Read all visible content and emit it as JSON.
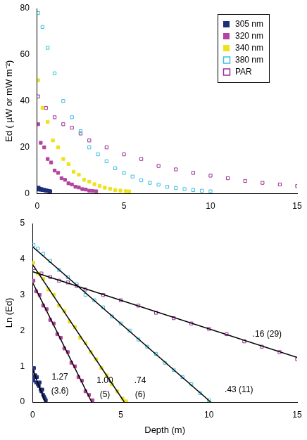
{
  "chart_data": [
    {
      "type": "scatter",
      "y_label": "Ed ( µW or mW m⁻²)",
      "xlim": [
        0,
        15
      ],
      "xticks": [
        0,
        5,
        10,
        15
      ],
      "ylim": [
        0,
        80
      ],
      "yticks": [
        0,
        20,
        40,
        60,
        80
      ],
      "grid": false,
      "legend": "upper right",
      "series": [
        {
          "name": "305 nm",
          "color": "#1f2e78",
          "marker": "square",
          "x": [
            0.02,
            0.05,
            0.08,
            0.1,
            0.15,
            0.2,
            0.25,
            0.3,
            0.35,
            0.4,
            0.45,
            0.5,
            0.55,
            0.6,
            0.65,
            0.7,
            0.75
          ],
          "values": [
            2.3,
            1.8,
            2.6,
            2.0,
            2.1,
            1.7,
            2.0,
            1.6,
            1.6,
            1.7,
            1.4,
            1.3,
            1.4,
            1.2,
            1.2,
            1.1,
            1.05
          ]
        },
        {
          "name": "320 nm",
          "color": "#b3449f",
          "marker": "square",
          "x": [
            0.05,
            0.2,
            0.4,
            0.6,
            0.8,
            1.0,
            1.2,
            1.4,
            1.6,
            1.8,
            2.0,
            2.2,
            2.4,
            2.6,
            2.8,
            3.0,
            3.2,
            3.4
          ],
          "values": [
            30,
            22,
            20,
            15,
            13.5,
            10,
            9,
            6.7,
            6,
            4.5,
            4,
            3,
            2.7,
            2,
            1.8,
            1.3,
            1.2,
            1.05
          ]
        },
        {
          "name": "340 nm",
          "color": "#eee21c",
          "marker": "square",
          "x": [
            0.05,
            0.3,
            0.6,
            0.9,
            1.2,
            1.5,
            1.8,
            2.1,
            2.4,
            2.7,
            3.0,
            3.3,
            3.6,
            3.9,
            4.2,
            4.5,
            4.8,
            5.1,
            5.3
          ],
          "values": [
            49,
            37,
            31,
            23,
            20,
            15,
            12.8,
            9.5,
            8.2,
            6,
            5.2,
            4.1,
            3.3,
            2.6,
            2.1,
            1.6,
            1.35,
            1.1,
            1.0
          ]
        },
        {
          "name": "380 nm",
          "color": "#3bbfe0",
          "marker": "open_square",
          "x": [
            0.05,
            0.3,
            0.6,
            1,
            1.5,
            2,
            2.5,
            3,
            3.5,
            4,
            4.5,
            5,
            5.5,
            6,
            6.5,
            7,
            7.5,
            8,
            8.5,
            9,
            9.5,
            10
          ],
          "values": [
            78,
            72,
            63,
            52,
            40,
            33,
            27,
            20,
            17,
            14,
            11,
            9,
            7.4,
            5.8,
            4.7,
            3.9,
            3,
            2.5,
            2,
            1.6,
            1.3,
            1.05
          ]
        },
        {
          "name": "PAR",
          "color": "#9a2f97",
          "marker": "open_square",
          "x": [
            0.05,
            0.5,
            1,
            1.5,
            2,
            2.5,
            3,
            4,
            5,
            6,
            7,
            8,
            9,
            10,
            11,
            12,
            13,
            14,
            15
          ],
          "values": [
            42,
            37,
            33,
            30,
            28.5,
            26,
            23,
            20,
            17,
            15,
            12,
            10.5,
            9,
            7.8,
            6.7,
            5.5,
            4.7,
            4,
            3.3
          ]
        }
      ]
    },
    {
      "type": "scatter",
      "x_label": "Depth (m)",
      "y_label": "Ln (Ed)",
      "xlim": [
        0,
        15
      ],
      "xticks": [
        0,
        5,
        10,
        15
      ],
      "ylim": [
        0,
        5
      ],
      "yticks": [
        0,
        1,
        2,
        3,
        4,
        5
      ],
      "grid": false,
      "series": [
        {
          "name": "305 nm",
          "color": "#1f2e78",
          "marker": "square",
          "x": [
            0.02,
            0.05,
            0.08,
            0.1,
            0.15,
            0.2,
            0.25,
            0.3,
            0.35,
            0.4,
            0.45,
            0.5,
            0.55,
            0.6,
            0.65,
            0.7,
            0.75
          ],
          "values": [
            0.85,
            0.6,
            0.95,
            0.7,
            0.75,
            0.55,
            0.7,
            0.5,
            0.45,
            0.55,
            0.35,
            0.3,
            0.35,
            0.2,
            0.15,
            0.1,
            0.05
          ],
          "fit": {
            "x": [
              0,
              0.72
            ],
            "values": [
              0.92,
              0
            ],
            "color": "#000000",
            "line_style": "solid"
          }
        },
        {
          "name": "320 nm",
          "color": "#b3449f",
          "marker": "square",
          "x": [
            0.05,
            0.2,
            0.4,
            0.6,
            0.8,
            1.0,
            1.2,
            1.4,
            1.6,
            1.8,
            2.0,
            2.2,
            2.4,
            2.6,
            2.8,
            3.0,
            3.2,
            3.4
          ],
          "values": [
            3.4,
            3.1,
            3.0,
            2.7,
            2.6,
            2.3,
            2.2,
            1.9,
            1.8,
            1.5,
            1.4,
            1.1,
            1.0,
            0.7,
            0.6,
            0.3,
            0.2,
            0.05
          ],
          "fit": {
            "x": [
              0,
              3.35
            ],
            "values": [
              3.35,
              0
            ],
            "color": "#000000",
            "line_style": "solid"
          }
        },
        {
          "name": "340 nm",
          "color": "#eee21c",
          "marker": "square",
          "x": [
            0.05,
            0.3,
            0.6,
            0.9,
            1.2,
            1.5,
            1.8,
            2.1,
            2.4,
            2.7,
            3.0,
            3.3,
            3.6,
            3.9,
            4.2,
            4.5,
            4.8,
            5.1,
            5.3
          ],
          "values": [
            3.9,
            3.6,
            3.45,
            3.15,
            3.0,
            2.7,
            2.55,
            2.25,
            2.1,
            1.8,
            1.65,
            1.4,
            1.2,
            0.95,
            0.75,
            0.5,
            0.3,
            0.1,
            0.02
          ],
          "fit": {
            "x": [
              0,
              5.2
            ],
            "values": [
              3.85,
              0
            ],
            "color": "#000000",
            "line_style": "solid"
          }
        },
        {
          "name": "380 nm",
          "color": "#3bbfe0",
          "marker": "open_square",
          "x": [
            0.05,
            0.3,
            0.6,
            1,
            1.5,
            2,
            2.5,
            3,
            3.5,
            4,
            4.5,
            5,
            5.5,
            6,
            6.5,
            7,
            7.5,
            8,
            8.5,
            9,
            9.5,
            10
          ],
          "values": [
            4.4,
            4.3,
            4.15,
            3.95,
            3.7,
            3.5,
            3.3,
            3.0,
            2.85,
            2.65,
            2.4,
            2.2,
            2.0,
            1.75,
            1.55,
            1.35,
            1.1,
            0.9,
            0.7,
            0.5,
            0.25,
            0.05
          ],
          "fit": {
            "x": [
              0,
              10.1
            ],
            "values": [
              4.35,
              0
            ],
            "color": "#000000",
            "line_style": "solid"
          }
        },
        {
          "name": "PAR",
          "color": "#9a2f97",
          "marker": "open_square",
          "x": [
            0.05,
            0.5,
            1,
            1.5,
            2,
            2.5,
            3,
            4,
            5,
            6,
            7,
            8,
            9,
            10,
            11,
            12,
            13,
            14,
            15
          ],
          "values": [
            3.75,
            3.6,
            3.5,
            3.4,
            3.35,
            3.25,
            3.15,
            3.0,
            2.85,
            2.7,
            2.5,
            2.35,
            2.2,
            2.05,
            1.9,
            1.7,
            1.55,
            1.4,
            1.2
          ],
          "fit": {
            "x": [
              0,
              15
            ],
            "values": [
              3.65,
              1.25
            ],
            "color": "#000000",
            "line_style": "solid"
          }
        }
      ],
      "annotations": [
        {
          "text": ".16 (29)",
          "x": 13.3,
          "y": 1.9
        },
        {
          "text": ".43 (11)",
          "x": 11.7,
          "y": 0.35
        },
        {
          "text": ".74",
          "x": 6.1,
          "y": 0.6
        },
        {
          "text": "(6)",
          "x": 6.1,
          "y": 0.2
        },
        {
          "text": "1.00",
          "x": 4.1,
          "y": 0.6
        },
        {
          "text": "(5)",
          "x": 4.1,
          "y": 0.2
        },
        {
          "text": "1.27",
          "x": 1.55,
          "y": 0.7
        },
        {
          "text": "(3.6)",
          "x": 1.55,
          "y": 0.3
        }
      ]
    }
  ]
}
